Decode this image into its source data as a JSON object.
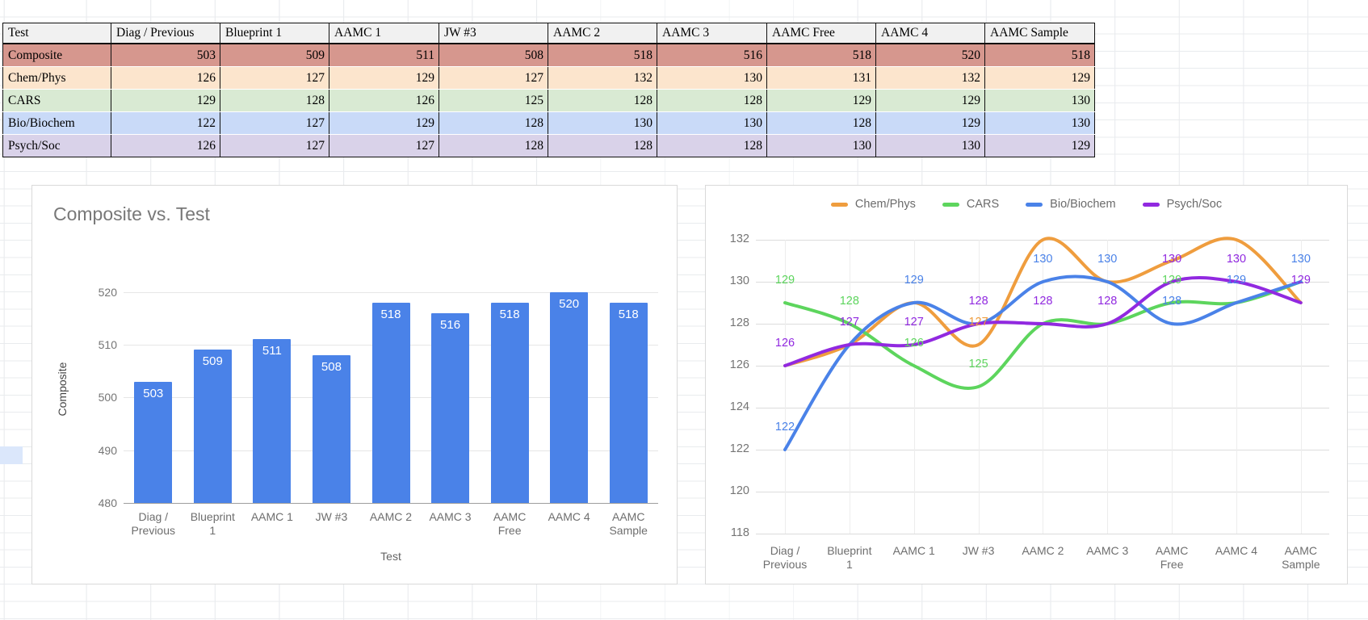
{
  "app": {
    "background": "#ffffff",
    "sheet_gridline_color": "#e9ebee"
  },
  "table": {
    "header_bg": "#f1f1f1",
    "columns": [
      "Test",
      "Diag / Previous",
      "Blueprint 1",
      "AAMC 1",
      "JW #3",
      "AAMC 2",
      "AAMC 3",
      "AAMC Free",
      "AAMC 4",
      "AAMC Sample"
    ],
    "rows": [
      {
        "label": "Composite",
        "bg": "#d6978e",
        "values": [
          503,
          509,
          511,
          508,
          518,
          516,
          518,
          520,
          518
        ]
      },
      {
        "label": "Chem/Phys",
        "bg": "#fce5cd",
        "values": [
          126,
          127,
          129,
          127,
          132,
          130,
          131,
          132,
          129
        ]
      },
      {
        "label": "CARS",
        "bg": "#d9ead3",
        "values": [
          129,
          128,
          126,
          125,
          128,
          128,
          129,
          129,
          130
        ]
      },
      {
        "label": "Bio/Biochem",
        "bg": "#c9daf8",
        "values": [
          122,
          127,
          129,
          128,
          130,
          130,
          128,
          129,
          130
        ]
      },
      {
        "label": "Psych/Soc",
        "bg": "#d9d2e9",
        "values": [
          126,
          127,
          127,
          128,
          128,
          128,
          130,
          130,
          129
        ]
      }
    ]
  },
  "chart_data": [
    {
      "type": "bar",
      "title": "Composite vs. Test",
      "xlabel": "Test",
      "ylabel": "Composite",
      "categories": [
        "Diag / Previous",
        "Blueprint 1",
        "AAMC 1",
        "JW #3",
        "AAMC 2",
        "AAMC 3",
        "AAMC Free",
        "AAMC 4",
        "AAMC Sample"
      ],
      "category_lines": [
        [
          "Diag /",
          "Previous"
        ],
        [
          "Blueprint",
          "1"
        ],
        [
          "AAMC 1"
        ],
        [
          "JW #3"
        ],
        [
          "AAMC 2"
        ],
        [
          "AAMC 3"
        ],
        [
          "AAMC",
          "Free"
        ],
        [
          "AAMC 4"
        ],
        [
          "AAMC",
          "Sample"
        ]
      ],
      "values": [
        503,
        509,
        511,
        508,
        518,
        516,
        518,
        520,
        518
      ],
      "yticks": [
        480,
        490,
        500,
        510,
        520
      ],
      "ylim": [
        480,
        523
      ],
      "grid": true,
      "bar_color": "#4a82e8",
      "data_label_color": "#ffffff"
    },
    {
      "type": "line",
      "title": "",
      "legend_position": "top",
      "categories": [
        "Diag / Previous",
        "Blueprint 1",
        "AAMC 1",
        "JW #3",
        "AAMC 2",
        "AAMC 3",
        "AAMC Free",
        "AAMC 4",
        "AAMC Sample"
      ],
      "category_lines": [
        [
          "Diag /",
          "Previous"
        ],
        [
          "Blueprint",
          "1"
        ],
        [
          "AAMC 1"
        ],
        [
          "JW #3"
        ],
        [
          "AAMC 2"
        ],
        [
          "AAMC 3"
        ],
        [
          "AAMC",
          "Free"
        ],
        [
          "AAMC 4"
        ],
        [
          "AAMC",
          "Sample"
        ]
      ],
      "series": [
        {
          "name": "Chem/Phys",
          "color": "#ef9d3e",
          "values": [
            126,
            127,
            129,
            127,
            132,
            130,
            131,
            132,
            129
          ]
        },
        {
          "name": "CARS",
          "color": "#5dd55d",
          "values": [
            129,
            128,
            126,
            125,
            128,
            128,
            129,
            129,
            130
          ]
        },
        {
          "name": "Bio/Biochem",
          "color": "#4a82e8",
          "values": [
            122,
            127,
            129,
            128,
            130,
            130,
            128,
            129,
            130
          ]
        },
        {
          "name": "Psych/Soc",
          "color": "#9129e0",
          "values": [
            126,
            127,
            127,
            128,
            128,
            128,
            130,
            130,
            129
          ]
        }
      ],
      "yticks": [
        118,
        120,
        122,
        124,
        126,
        128,
        130,
        132
      ],
      "ylim": [
        118,
        133.6
      ],
      "grid": true,
      "point_labels": [
        {
          "series": "CARS",
          "index": 0,
          "value": 129
        },
        {
          "series": "Psych/Soc",
          "index": 0,
          "value": 126
        },
        {
          "series": "Bio/Biochem",
          "index": 0,
          "value": 122
        },
        {
          "series": "CARS",
          "index": 1,
          "value": 128
        },
        {
          "series": "Psych/Soc",
          "index": 1,
          "value": 127
        },
        {
          "series": "Bio/Biochem",
          "index": 2,
          "value": 129
        },
        {
          "series": "Psych/Soc",
          "index": 2,
          "value": 127
        },
        {
          "series": "CARS",
          "index": 2,
          "value": 126
        },
        {
          "series": "Psych/Soc",
          "index": 3,
          "value": 128
        },
        {
          "series": "Chem/Phys",
          "index": 3,
          "value": 127
        },
        {
          "series": "CARS",
          "index": 3,
          "value": 125
        },
        {
          "series": "Bio/Biochem",
          "index": 4,
          "value": 130
        },
        {
          "series": "Psych/Soc",
          "index": 4,
          "value": 128
        },
        {
          "series": "Bio/Biochem",
          "index": 5,
          "value": 130
        },
        {
          "series": "Psych/Soc",
          "index": 5,
          "value": 128
        },
        {
          "series": "Psych/Soc",
          "index": 6,
          "value": 130
        },
        {
          "series": "CARS",
          "index": 6,
          "value": 129
        },
        {
          "series": "Bio/Biochem",
          "index": 6,
          "value": 128
        },
        {
          "series": "Psych/Soc",
          "index": 7,
          "value": 130
        },
        {
          "series": "Bio/Biochem",
          "index": 7,
          "value": 129
        },
        {
          "series": "Bio/Biochem",
          "index": 8,
          "value": 130
        },
        {
          "series": "Psych/Soc",
          "index": 8,
          "value": 129
        }
      ]
    }
  ]
}
